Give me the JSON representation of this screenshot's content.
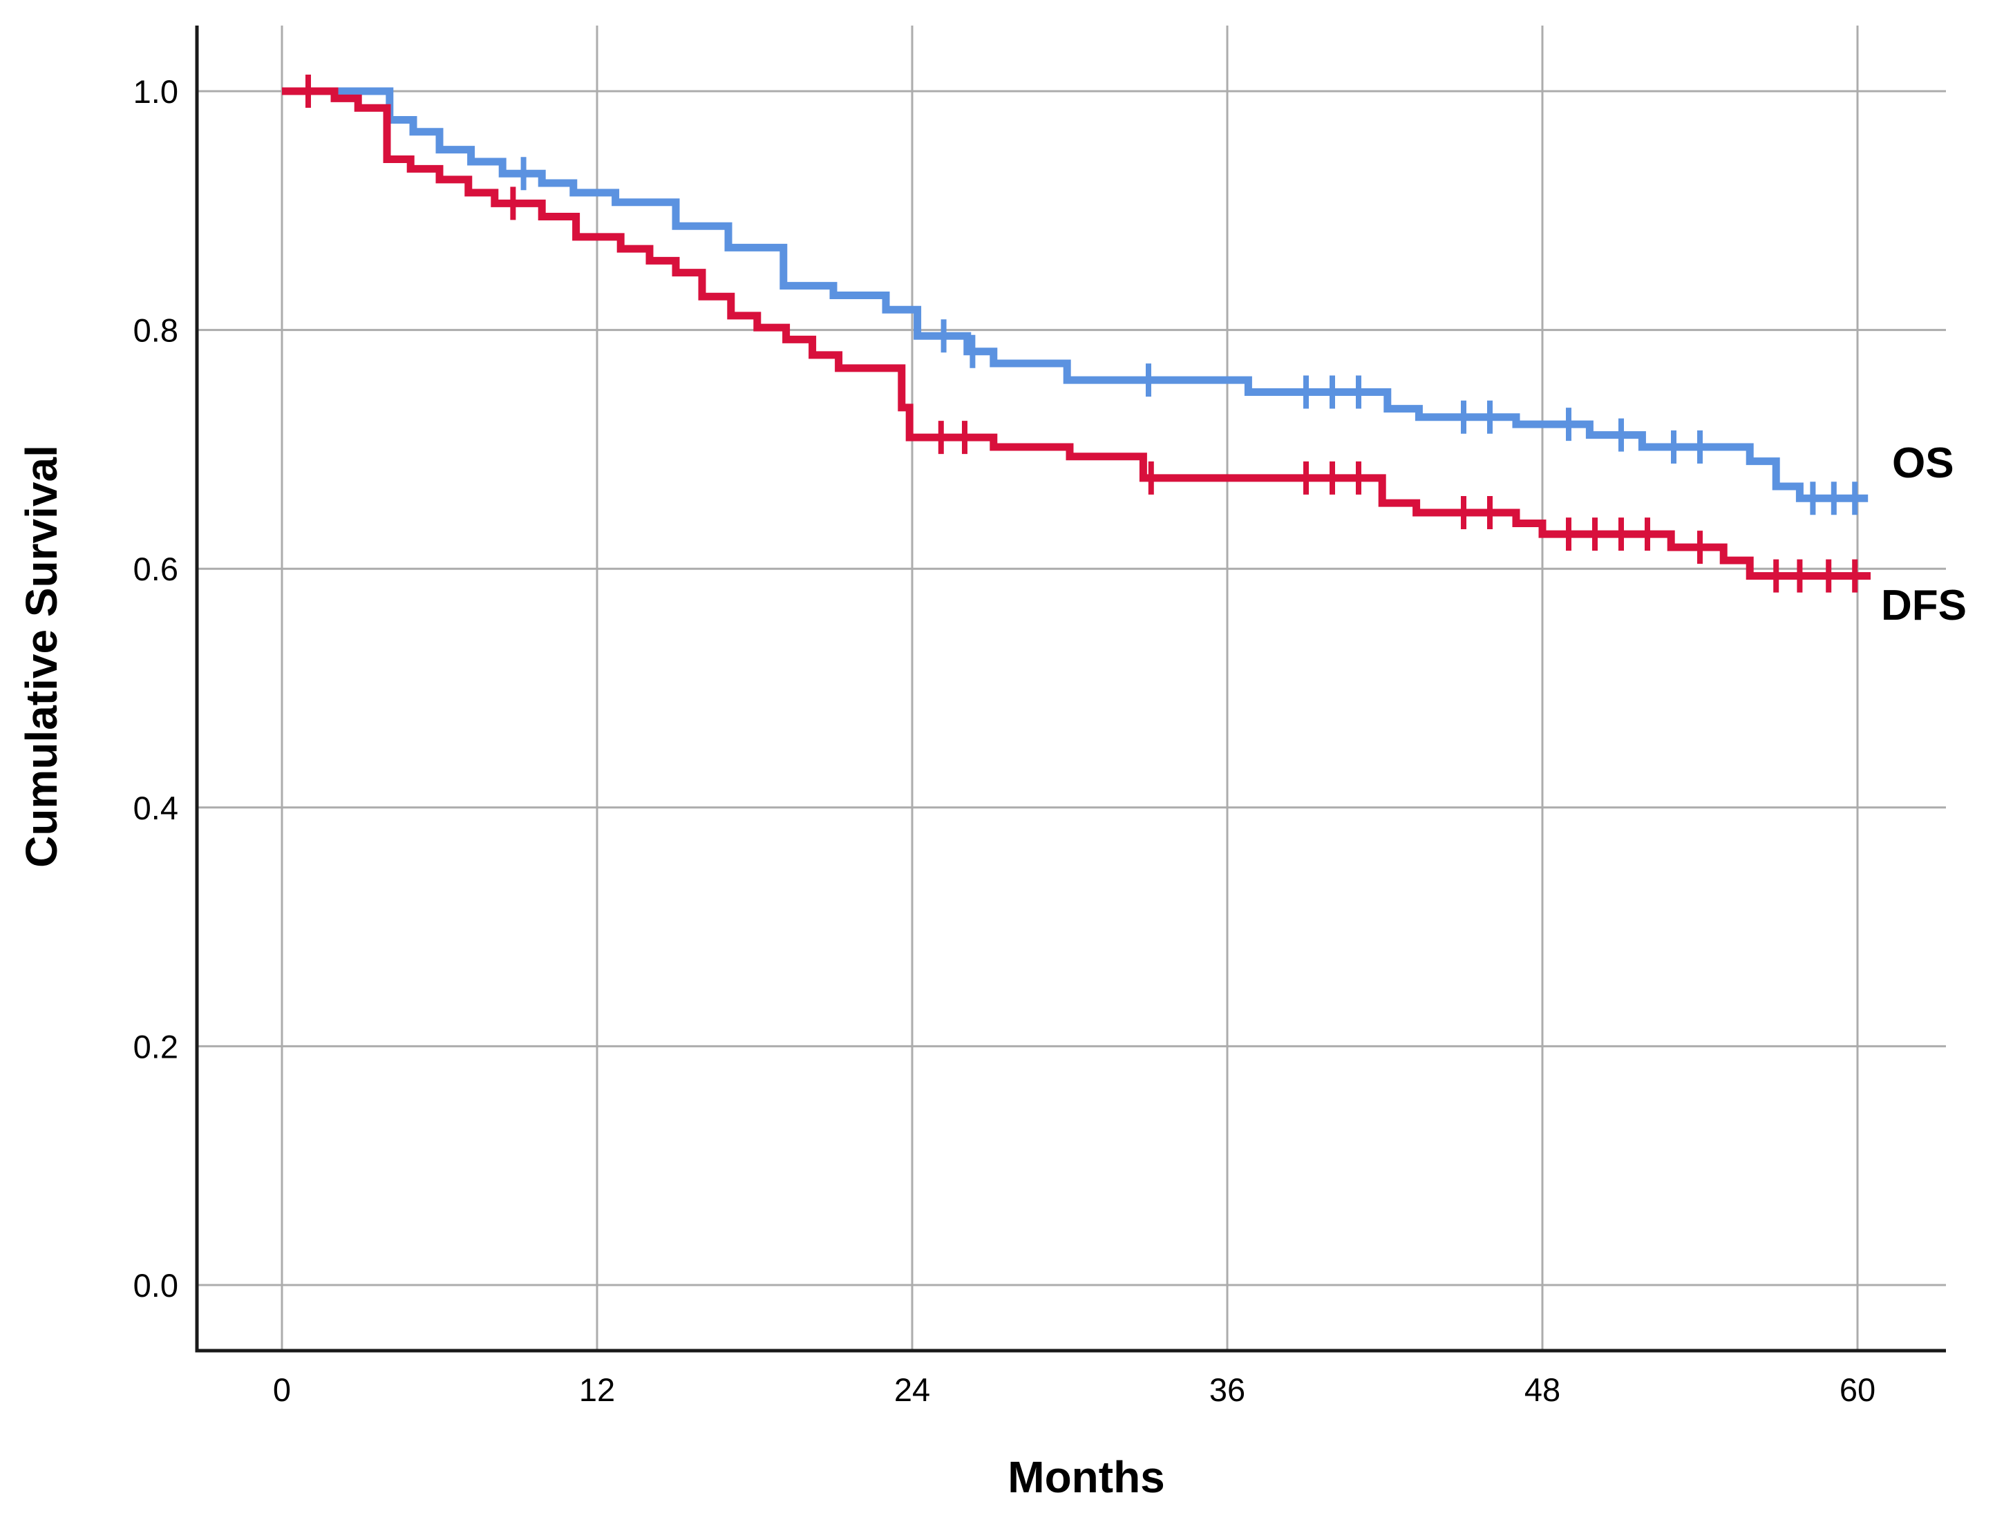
{
  "chart_data": {
    "type": "line",
    "subtype": "kaplan_meier_step",
    "title": "",
    "xlabel": "Months",
    "ylabel": "Cumulative Survival",
    "x_ticks": [
      0,
      12,
      24,
      36,
      48,
      60
    ],
    "x_tick_labels": [
      "0",
      "12",
      "24",
      "36",
      "48",
      "60"
    ],
    "y_ticks": [
      1.0,
      0.8,
      0.6,
      0.4,
      0.2,
      0.0
    ],
    "y_tick_labels": [
      "1.0",
      "0.8",
      "0.6",
      "0.4",
      "0.2",
      "0.0"
    ],
    "xlim": [
      -3.2,
      63.4
    ],
    "ylim": [
      -0.055,
      1.076
    ],
    "grid": true,
    "legend_position": "right-inline",
    "colors": {
      "os": "#5B92E0",
      "dfs": "#D8103C",
      "grid": "#ACACAC",
      "axis": "#1A1A1A",
      "text": "#000000"
    },
    "series": [
      {
        "name": "OS",
        "color": "#5B92E0",
        "end_month": 60.4,
        "steps": [
          [
            0,
            1.0
          ],
          [
            4.1,
            0.976
          ],
          [
            5.0,
            0.966
          ],
          [
            6.0,
            0.951
          ],
          [
            7.2,
            0.941
          ],
          [
            8.4,
            0.931
          ],
          [
            9.9,
            0.923
          ],
          [
            11.1,
            0.915
          ],
          [
            12.7,
            0.907
          ],
          [
            15.0,
            0.887
          ],
          [
            17.0,
            0.869
          ],
          [
            19.1,
            0.837
          ],
          [
            21.0,
            0.829
          ],
          [
            23.0,
            0.817
          ],
          [
            24.2,
            0.795
          ],
          [
            26.1,
            0.782
          ],
          [
            27.1,
            0.772
          ],
          [
            29.9,
            0.758
          ],
          [
            36.8,
            0.748
          ],
          [
            42.1,
            0.734
          ],
          [
            43.3,
            0.727
          ],
          [
            47.0,
            0.721
          ],
          [
            49.8,
            0.712
          ],
          [
            51.8,
            0.702
          ],
          [
            55.9,
            0.69
          ],
          [
            56.9,
            0.669
          ],
          [
            57.8,
            0.659
          ]
        ],
        "censor_months": [
          9.2,
          25.2,
          26.3,
          33.0,
          39.0,
          40.0,
          41.0,
          45.0,
          46.0,
          49.0,
          51.0,
          53.0,
          54.0,
          58.3,
          59.1,
          59.9
        ]
      },
      {
        "name": "DFS",
        "color": "#D8103C",
        "end_month": 60.5,
        "steps": [
          [
            0,
            1.0
          ],
          [
            2.0,
            0.994
          ],
          [
            2.9,
            0.986
          ],
          [
            4.0,
            0.943
          ],
          [
            4.9,
            0.935
          ],
          [
            6.0,
            0.926
          ],
          [
            7.1,
            0.915
          ],
          [
            8.1,
            0.906
          ],
          [
            9.9,
            0.895
          ],
          [
            11.2,
            0.878
          ],
          [
            12.9,
            0.868
          ],
          [
            14.0,
            0.858
          ],
          [
            15.0,
            0.848
          ],
          [
            16.0,
            0.828
          ],
          [
            17.1,
            0.812
          ],
          [
            18.1,
            0.802
          ],
          [
            19.2,
            0.792
          ],
          [
            20.2,
            0.779
          ],
          [
            21.2,
            0.768
          ],
          [
            23.6,
            0.735
          ],
          [
            23.9,
            0.71
          ],
          [
            27.1,
            0.702
          ],
          [
            30.0,
            0.694
          ],
          [
            32.8,
            0.676
          ],
          [
            41.9,
            0.655
          ],
          [
            43.2,
            0.647
          ],
          [
            47.0,
            0.638
          ],
          [
            48.0,
            0.629
          ],
          [
            52.9,
            0.618
          ],
          [
            54.9,
            0.607
          ],
          [
            55.9,
            0.594
          ]
        ],
        "censor_months": [
          1.0,
          8.8,
          25.1,
          26.0,
          33.1,
          39.0,
          40.0,
          41.0,
          45.0,
          46.0,
          49.0,
          50.0,
          51.0,
          52.0,
          54.0,
          56.9,
          57.8,
          58.9,
          59.9
        ]
      }
    ]
  },
  "labels": {
    "os": "OS",
    "dfs": "DFS"
  }
}
